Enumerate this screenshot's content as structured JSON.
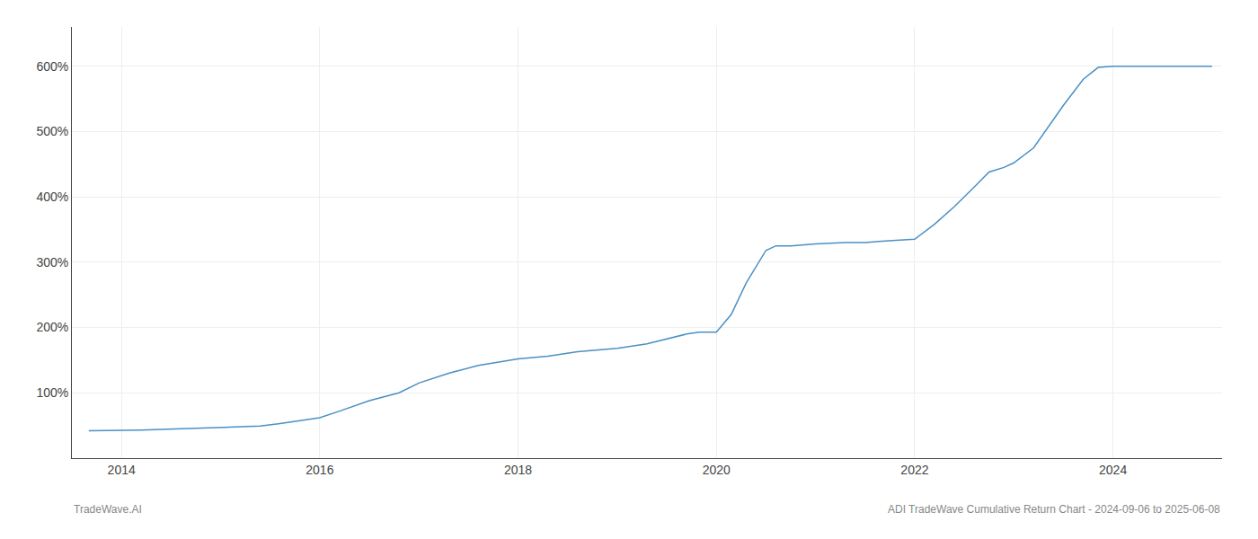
{
  "chart_data": {
    "type": "line",
    "x": [
      2013.67,
      2014.0,
      2014.1,
      2014.2,
      2014.4,
      2014.6,
      2014.8,
      2015.0,
      2015.2,
      2015.4,
      2015.6,
      2015.7,
      2015.8,
      2016.0,
      2016.2,
      2016.5,
      2016.8,
      2017.0,
      2017.3,
      2017.6,
      2018.0,
      2018.3,
      2018.6,
      2019.0,
      2019.3,
      2019.5,
      2019.7,
      2019.83,
      2020.0,
      2020.15,
      2020.3,
      2020.5,
      2020.6,
      2020.75,
      2021.0,
      2021.3,
      2021.5,
      2021.67,
      2021.8,
      2022.0,
      2022.2,
      2022.4,
      2022.6,
      2022.75,
      2022.9,
      2023.0,
      2023.2,
      2023.5,
      2023.7,
      2023.85,
      2024.0,
      2024.2,
      2024.5,
      2024.8,
      2025.0
    ],
    "values": [
      42,
      42,
      42,
      43,
      44,
      45,
      46,
      47,
      48,
      49,
      53,
      55,
      57,
      62,
      72,
      88,
      100,
      115,
      130,
      142,
      152,
      156,
      163,
      168,
      175,
      183,
      190,
      193,
      193,
      220,
      268,
      318,
      325,
      325,
      328,
      330,
      330,
      332,
      333,
      335,
      358,
      385,
      415,
      438,
      445,
      452,
      475,
      540,
      580,
      598,
      600,
      600,
      600,
      600,
      600
    ],
    "color": "#4a90c4",
    "xlim": [
      2013.5,
      2025.1
    ],
    "xticks": [
      2014,
      2016,
      2018,
      2020,
      2022,
      2024
    ],
    "ylim": [
      0,
      660
    ],
    "yticks": [
      {
        "value": 100,
        "label": "100%"
      },
      {
        "value": 200,
        "label": "200%"
      },
      {
        "value": 300,
        "label": "300%"
      },
      {
        "value": 400,
        "label": "400%"
      },
      {
        "value": 500,
        "label": "500%"
      },
      {
        "value": 600,
        "label": "600%"
      }
    ],
    "grid": true,
    "annotations": [
      "TradeWave.AI",
      "ADI TradeWave Cumulative Return Chart - 2024-09-06 to 2025-06-08"
    ]
  }
}
